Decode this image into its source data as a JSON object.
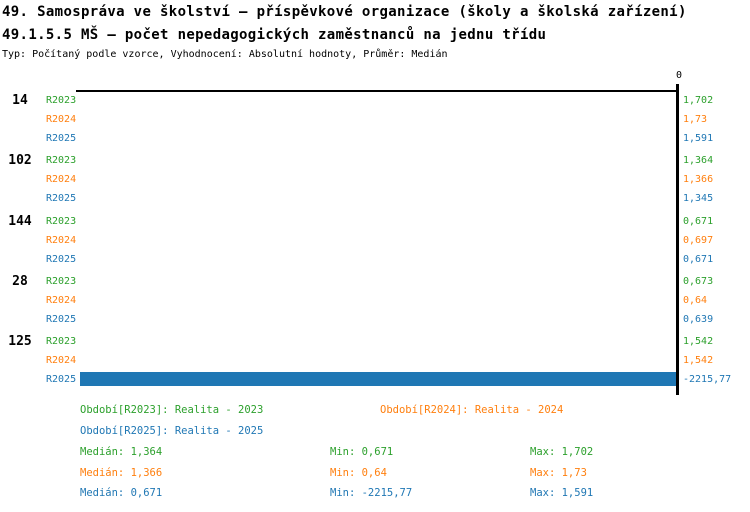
{
  "header": {
    "title_line1": "49. Samospráva ve školství – příspěvkové organizace (školy a školská zařízení)",
    "title_line2": "49.1.5.5 MŠ – počet nepedagogických zaměstnanců na jednu třídu",
    "meta_line": "Typ: Počítaný podle vzorce, Vyhodnocení: Absolutní hodnoty, Průměr: Medián"
  },
  "chart_data": {
    "type": "bar",
    "orientation": "horizontal",
    "axis_zero_label": "0",
    "xlim": [
      -2250,
      20
    ],
    "grid": false,
    "legend_position": "bottom",
    "series": [
      {
        "key": "R2023",
        "label": "Realita - 2023",
        "color": "#2CA02C"
      },
      {
        "key": "R2024",
        "label": "Realita - 2024",
        "color": "#FF7F0E"
      },
      {
        "key": "R2025",
        "label": "Realita - 2025",
        "color": "#1F77B4"
      }
    ],
    "groups": [
      {
        "id": "14",
        "rows": [
          {
            "series": "R2023",
            "value": 1.702,
            "value_label": "1,702"
          },
          {
            "series": "R2024",
            "value": 1.73,
            "value_label": "1,73"
          },
          {
            "series": "R2025",
            "value": 1.591,
            "value_label": "1,591"
          }
        ]
      },
      {
        "id": "102",
        "rows": [
          {
            "series": "R2023",
            "value": 1.364,
            "value_label": "1,364"
          },
          {
            "series": "R2024",
            "value": 1.366,
            "value_label": "1,366"
          },
          {
            "series": "R2025",
            "value": 1.345,
            "value_label": "1,345"
          }
        ]
      },
      {
        "id": "144",
        "rows": [
          {
            "series": "R2023",
            "value": 0.671,
            "value_label": "0,671"
          },
          {
            "series": "R2024",
            "value": 0.697,
            "value_label": "0,697"
          },
          {
            "series": "R2025",
            "value": 0.671,
            "value_label": "0,671"
          }
        ]
      },
      {
        "id": "28",
        "rows": [
          {
            "series": "R2023",
            "value": 0.673,
            "value_label": "0,673"
          },
          {
            "series": "R2024",
            "value": 0.64,
            "value_label": "0,64"
          },
          {
            "series": "R2025",
            "value": 0.639,
            "value_label": "0,639"
          }
        ]
      },
      {
        "id": "125",
        "rows": [
          {
            "series": "R2023",
            "value": 1.542,
            "value_label": "1,542"
          },
          {
            "series": "R2024",
            "value": 1.542,
            "value_label": "1,542"
          },
          {
            "series": "R2025",
            "value": -2215.77,
            "value_label": "-2215,77"
          }
        ]
      }
    ]
  },
  "legend": {
    "items": [
      {
        "key": "R2023",
        "label": "Období[R2023]: Realita - 2023"
      },
      {
        "key": "R2024",
        "label": "Období[R2024]: Realita - 2024"
      },
      {
        "key": "R2025",
        "label": "Období[R2025]: Realita - 2025"
      }
    ]
  },
  "stats": {
    "rows": [
      {
        "key": "R2023",
        "median": "Medián: 1,364",
        "min": "Min: 0,671",
        "max": "Max: 1,702"
      },
      {
        "key": "R2024",
        "median": "Medián: 1,366",
        "min": "Min: 0,64",
        "max": "Max: 1,73"
      },
      {
        "key": "R2025",
        "median": "Medián: 0,671",
        "min": "Min: -2215,77",
        "max": "Max: 1,591"
      }
    ]
  }
}
